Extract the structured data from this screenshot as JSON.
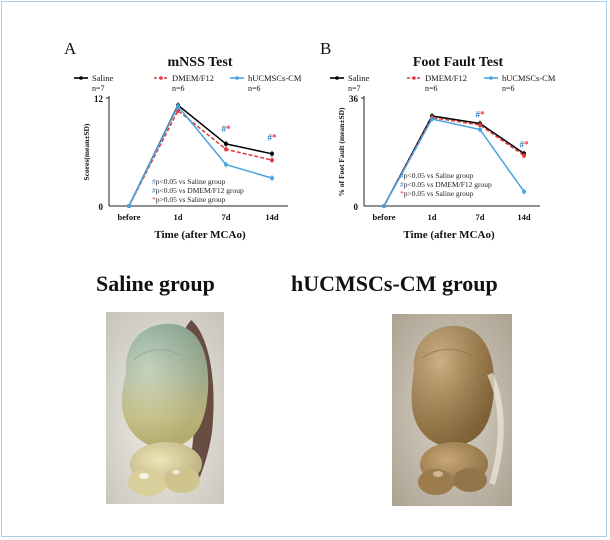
{
  "chart_data": [
    {
      "panel_label": "A",
      "title": "mNSS Test",
      "type": "line",
      "xlabel": "Time (after MCAo)",
      "ylabel": "Scores(mean±SD)",
      "categories": [
        "before",
        "1d",
        "7d",
        "14d"
      ],
      "yticks": [
        "0",
        "12"
      ],
      "ylim": [
        0,
        12
      ],
      "series": [
        {
          "name": "Saline",
          "n": "n=7",
          "color": "#000000",
          "dash": "solid",
          "values": [
            0,
            11.2,
            6.9,
            5.8
          ]
        },
        {
          "name": "DMEM/F12",
          "n": "n=6",
          "color": "#e03a3a",
          "dash": "dashed",
          "values": [
            0,
            10.6,
            6.3,
            5.1
          ]
        },
        {
          "name": "hUCMSCs-CM",
          "n": "n=6",
          "color": "#4aa3df",
          "dash": "solid",
          "values": [
            0,
            11.1,
            4.6,
            3.1
          ]
        }
      ],
      "annotations": [
        {
          "x": "7d",
          "text": "#*",
          "color": "#2e7fc9",
          "y": 8.2
        },
        {
          "x": "14d",
          "text": "#*",
          "color": "#2e7fc9",
          "y": 7.3
        }
      ],
      "stats_legend": [
        {
          "text": "#p<0.05 vs Saline group",
          "color": "#2e7fc9"
        },
        {
          "text": "#p<0.05 vs DMEM/F12 group",
          "color": "#2e7fc9"
        },
        {
          "text": "*p>0.05 vs Saline group",
          "color": "#e03a3a"
        }
      ],
      "legend_position": "top"
    },
    {
      "panel_label": "B",
      "title": "Foot Fault Test",
      "type": "line",
      "xlabel": "Time (after MCAo)",
      "ylabel": "% of Foot Fault (mean±SD)",
      "categories": [
        "before",
        "1d",
        "7d",
        "14d"
      ],
      "yticks": [
        "0",
        "36"
      ],
      "ylim": [
        0,
        36
      ],
      "series": [
        {
          "name": "Saline",
          "n": "n=7",
          "color": "#000000",
          "dash": "solid",
          "values": [
            0,
            30,
            27.5,
            17.5
          ]
        },
        {
          "name": "DMEM/F12",
          "n": "n=6",
          "color": "#e03a3a",
          "dash": "dashed",
          "values": [
            0,
            29.5,
            27.0,
            16.8
          ]
        },
        {
          "name": "hUCMSCs-CM",
          "n": "n=6",
          "color": "#4aa3df",
          "dash": "solid",
          "values": [
            0,
            29.0,
            25.5,
            4.8
          ]
        }
      ],
      "annotations": [
        {
          "x": "7d",
          "text": "#*",
          "color": "#2e7fc9",
          "y": 29.5
        },
        {
          "x": "14d",
          "text": "#*",
          "color": "#2e7fc9",
          "y": 19.5
        }
      ],
      "stats_legend": [
        {
          "text": "#p<0.05 vs Saline group",
          "color": "#2e7fc9"
        },
        {
          "text": "#p<0.05 vs DMEM/F12 group",
          "color": "#2e7fc9"
        },
        {
          "text": "*p>0.05 vs Saline group",
          "color": "#e03a3a"
        }
      ],
      "legend_position": "top"
    }
  ],
  "photos": {
    "saline_label": "Saline group",
    "treated_label": "hUCMSCs-CM group"
  }
}
